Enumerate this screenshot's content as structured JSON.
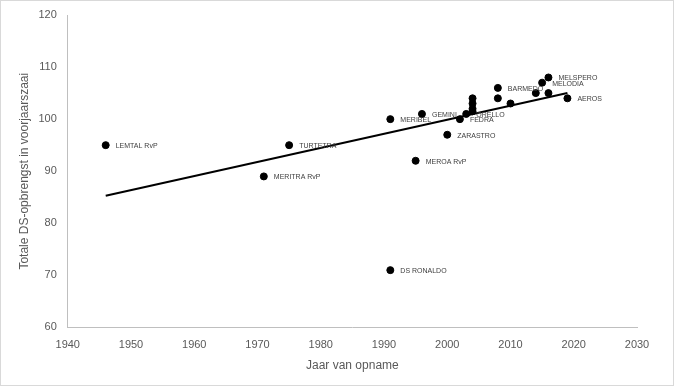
{
  "chart_data": {
    "type": "scatter",
    "x_label": "Jaar van opname",
    "y_label": "Totale DS-opbrengst in voorjaarszaai",
    "xlim": [
      1940,
      2030
    ],
    "xticks": [
      1940,
      1950,
      1960,
      1970,
      1980,
      1990,
      2000,
      2010,
      2020,
      2030
    ],
    "ylim": [
      60,
      120
    ],
    "yticks": [
      60,
      70,
      80,
      90,
      100,
      110,
      120
    ],
    "grid": false,
    "series": [
      {
        "type": "scatter",
        "marker": "circle",
        "color": "#000000",
        "x": [
          1946,
          1971,
          1975,
          1991,
          1991,
          1995,
          1996,
          2000,
          2002,
          2003,
          2004,
          2004,
          2004,
          2004,
          2008,
          2008,
          2010,
          2014,
          2015,
          2016,
          2016,
          2019
        ],
        "values": [
          95,
          89,
          95,
          100,
          71,
          92,
          101,
          97,
          100,
          101,
          104,
          103,
          102,
          101.5,
          106,
          104,
          103,
          105,
          107,
          108,
          105,
          104
        ],
        "labels": [
          "LEMTAL RvP",
          "MERITRA RvP",
          "TURTETRA",
          "MERIBEL",
          "DS RONALDO",
          "MEROA RvP",
          "GEMINI",
          "ZARASTRO",
          "FEDRA",
          "ORELLO",
          null,
          null,
          null,
          null,
          "BARMEDO",
          null,
          null,
          null,
          "MELODIA",
          "MELSPERO",
          null,
          "AEROS"
        ]
      },
      {
        "type": "line",
        "line_style": "solid",
        "color": "#000000",
        "x": [
          1946,
          2019
        ],
        "values": [
          85.3,
          105.0
        ]
      }
    ]
  }
}
